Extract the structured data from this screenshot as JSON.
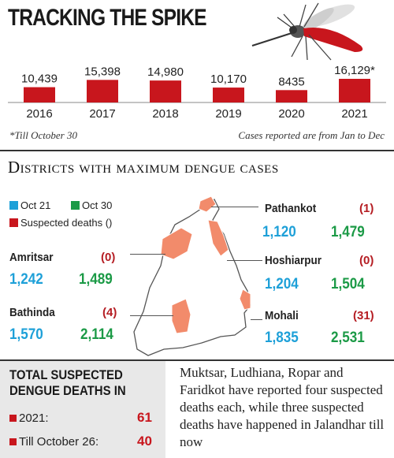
{
  "title": "TRACKING THE SPIKE",
  "chart_data": {
    "type": "bar",
    "categories": [
      "2016",
      "2017",
      "2018",
      "2019",
      "2020",
      "2021"
    ],
    "values": [
      10439,
      15398,
      14980,
      10170,
      8435,
      16129
    ],
    "data_labels": [
      "10,439",
      "15,398",
      "14,980",
      "10,170",
      "8435",
      "16,129*"
    ],
    "title": "TRACKING THE SPIKE",
    "xlabel": "",
    "ylabel": "",
    "bar_color": "#c8161d",
    "grid": false
  },
  "footnote_left": "*Till October 30",
  "footnote_right": "Cases reported are from Jan to Dec",
  "districts_title": "Districts with maximum dengue cases",
  "legend": {
    "oct21": {
      "label": "Oct 21",
      "color": "#1ea0d8"
    },
    "oct30": {
      "label": "Oct 30",
      "color": "#1b9a46"
    },
    "deaths": {
      "label": "Suspected deaths ()",
      "color": "#c8161d"
    }
  },
  "districts": {
    "pathankot": {
      "name": "Pathankot",
      "deaths": "(1)",
      "oct21": "1,120",
      "oct30": "1,479"
    },
    "amritsar": {
      "name": "Amritsar",
      "deaths": "(0)",
      "oct21": "1,242",
      "oct30": "1,489"
    },
    "hoshiarpur": {
      "name": "Hoshiarpur",
      "deaths": "(0)",
      "oct21": "1,204",
      "oct30": "1,504"
    },
    "bathinda": {
      "name": "Bathinda",
      "deaths": "(4)",
      "oct21": "1,570",
      "oct30": "2,114"
    },
    "mohali": {
      "name": "Mohali",
      "deaths": "(31)",
      "oct21": "1,835",
      "oct30": "2,531"
    }
  },
  "total_deaths": {
    "title_line1": "TOTAL SUSPECTED",
    "title_line2": "DENGUE DEATHS IN",
    "rows": [
      {
        "label": "2021:",
        "value": "61"
      },
      {
        "label": "Till October 26:",
        "value": "40"
      }
    ]
  },
  "note": "Muktsar, Ludhiana, Ropar and Faridkot have reported four suspected deaths each, while three suspected deaths have happened in Jalandhar till now"
}
